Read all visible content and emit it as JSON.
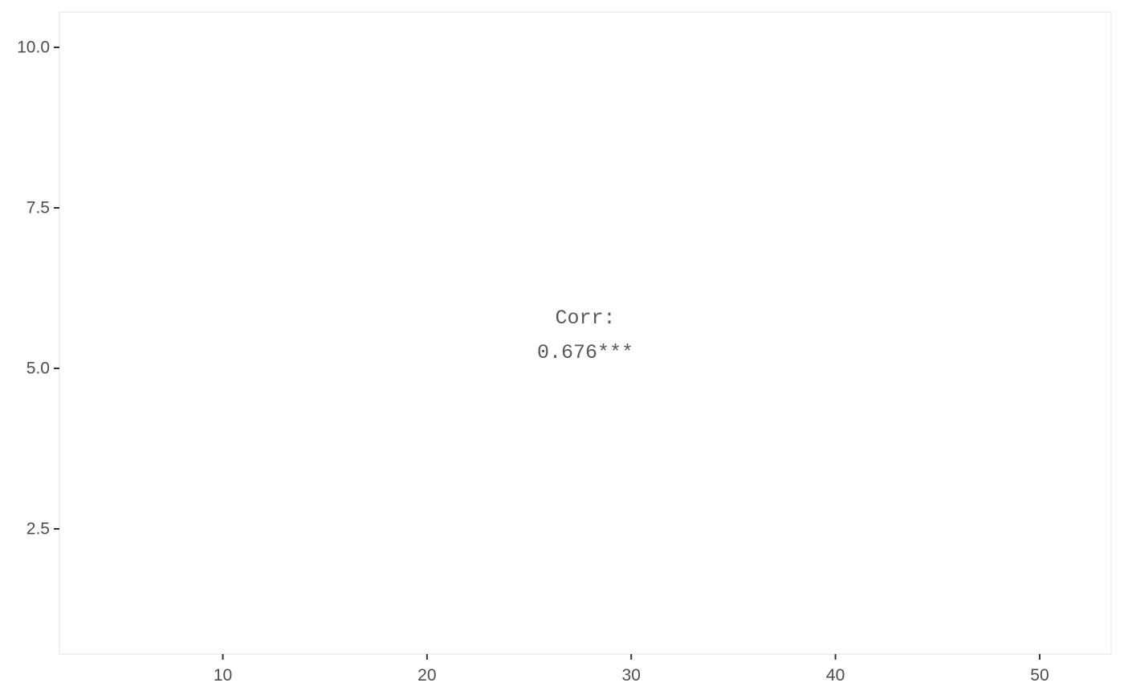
{
  "chart_data": {
    "type": "table",
    "title": "",
    "xlabel": "",
    "ylabel": "",
    "xlim": [
      2.0,
      53.5
    ],
    "ylim": [
      0.55,
      10.55
    ],
    "x_ticks": [
      10,
      20,
      30,
      40,
      50
    ],
    "y_ticks": [
      2.5,
      5.0,
      7.5,
      10.0
    ],
    "x_tick_labels": [
      "10",
      "20",
      "30",
      "40",
      "50"
    ],
    "y_tick_labels": [
      "2.5",
      "5.0",
      "7.5",
      "10.0"
    ],
    "grid": false,
    "annotation": {
      "label": "Corr:",
      "value": "0.676***"
    }
  }
}
